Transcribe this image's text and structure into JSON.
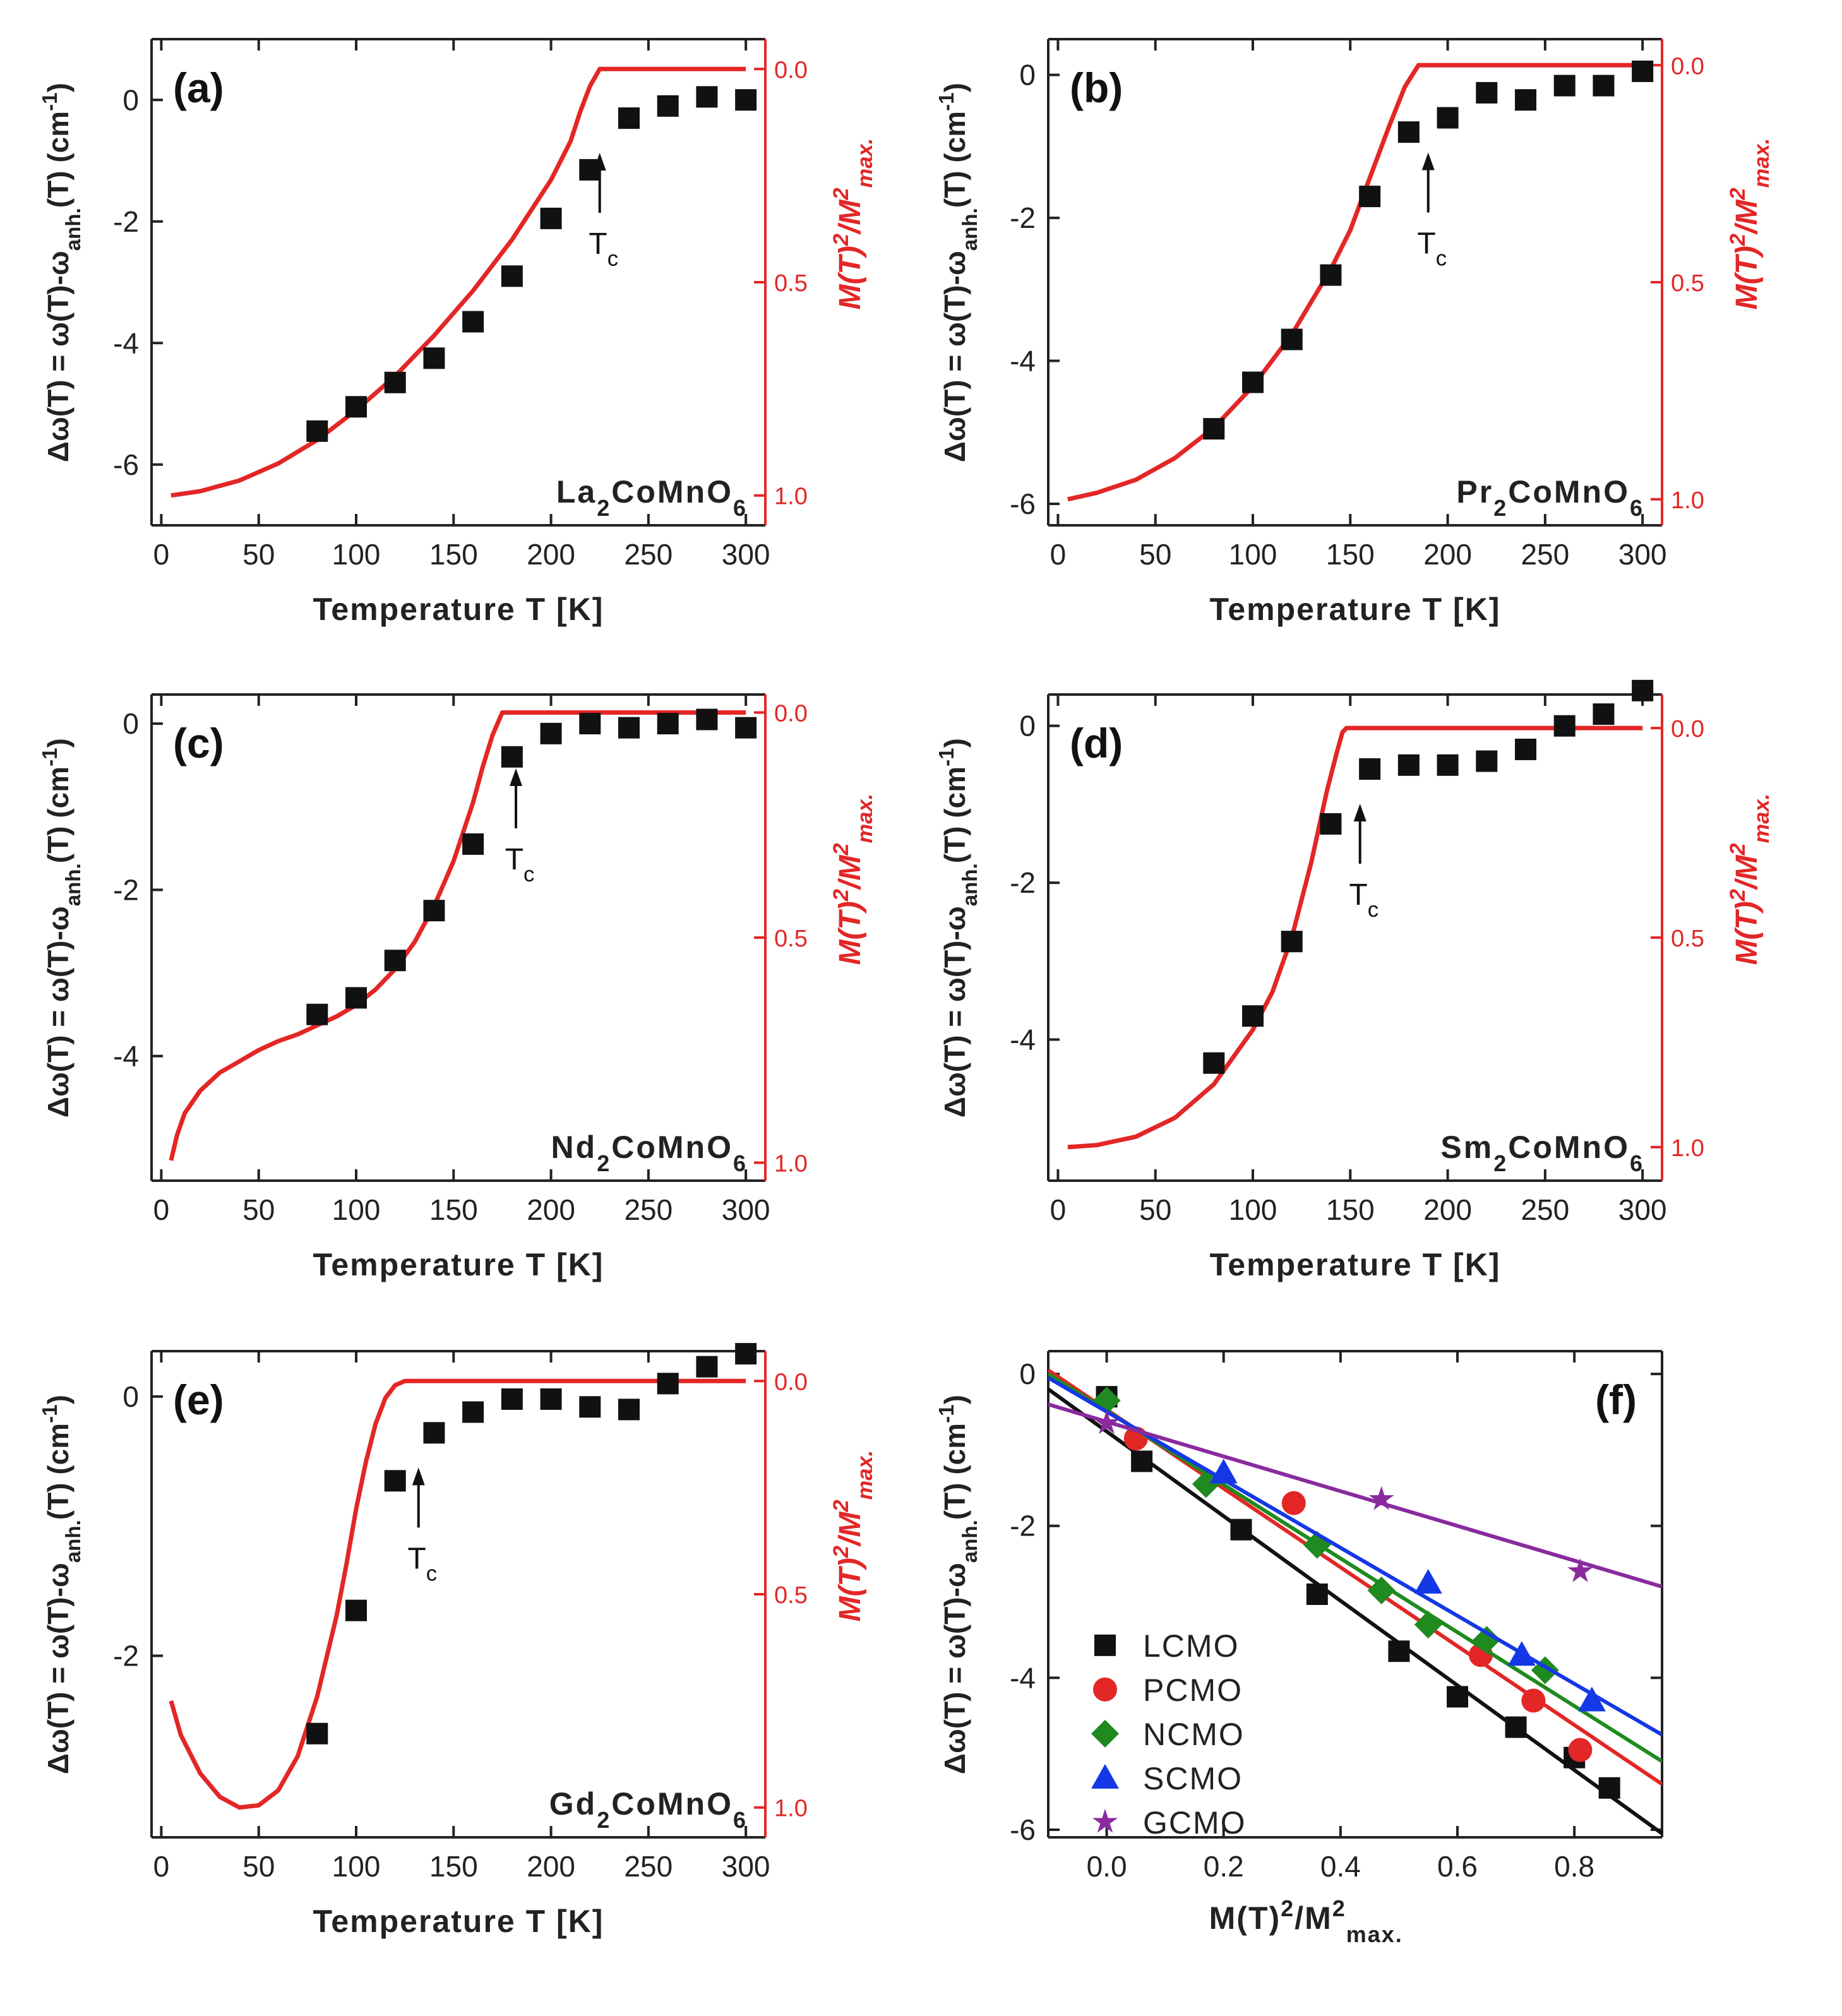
{
  "colors": {
    "fit_red": "#e32626",
    "axis_black": "#222222",
    "points_black": "#111111"
  },
  "y_label_left": "Δω(T) = ω(T)-ωanh.(T) (cm⁻¹)",
  "y_label_right": "M(T)²/M²max.",
  "x_label": "Temperature T [K]",
  "chart_data": [
    {
      "id": "a",
      "panel": "(a)",
      "type": "scatter+line",
      "compound": "La2CoMnO6",
      "xlabel": "Temperature T [K]",
      "xlim": [
        -5,
        310
      ],
      "ylim": [
        -7.0,
        1.0
      ],
      "rlim": [
        -0.07,
        1.07
      ],
      "xticks": [
        0,
        50,
        100,
        150,
        200,
        250,
        300
      ],
      "yticks": [
        0,
        -2,
        -4,
        -6
      ],
      "rticks": [
        0.0,
        0.5,
        1.0
      ],
      "tc": 225,
      "tc_label": "Tc",
      "points": {
        "x": [
          80,
          100,
          120,
          140,
          160,
          180,
          200,
          220,
          240,
          260,
          280,
          300
        ],
        "y": [
          -5.45,
          -5.05,
          -4.65,
          -4.25,
          -3.65,
          -2.9,
          -1.95,
          -1.15,
          -0.3,
          -0.1,
          0.05,
          0.0
        ]
      },
      "fit": {
        "x": [
          5,
          20,
          40,
          60,
          80,
          100,
          120,
          140,
          160,
          180,
          200,
          210,
          215,
          220,
          225,
          300
        ],
        "m2": [
          1.0,
          0.99,
          0.965,
          0.925,
          0.87,
          0.8,
          0.72,
          0.625,
          0.52,
          0.4,
          0.26,
          0.17,
          0.1,
          0.04,
          0.0,
          0.0
        ]
      }
    },
    {
      "id": "b",
      "panel": "(b)",
      "type": "scatter+line",
      "compound": "Pr2CoMnO6",
      "xlabel": "Temperature T [K]",
      "xlim": [
        -5,
        310
      ],
      "ylim": [
        -6.3,
        0.5
      ],
      "rlim": [
        -0.06,
        1.06
      ],
      "xticks": [
        0,
        50,
        100,
        150,
        200,
        250,
        300
      ],
      "yticks": [
        0,
        -2,
        -4,
        -6
      ],
      "rticks": [
        0.0,
        0.5,
        1.0
      ],
      "tc": 190,
      "tc_label": "Tc",
      "points": {
        "x": [
          80,
          100,
          120,
          140,
          160,
          180,
          200,
          220,
          240,
          260,
          280,
          300
        ],
        "y": [
          -4.95,
          -4.3,
          -3.7,
          -2.8,
          -1.7,
          -0.8,
          -0.6,
          -0.25,
          -0.35,
          -0.15,
          -0.15,
          0.05
        ]
      },
      "fit": {
        "x": [
          5,
          20,
          40,
          60,
          80,
          100,
          120,
          140,
          150,
          160,
          170,
          178,
          185,
          300
        ],
        "m2": [
          1.0,
          0.985,
          0.955,
          0.905,
          0.835,
          0.74,
          0.62,
          0.47,
          0.38,
          0.26,
          0.14,
          0.05,
          0.0,
          0.0
        ]
      }
    },
    {
      "id": "c",
      "panel": "(c)",
      "type": "scatter+line",
      "compound": "Nd2CoMnO6",
      "xlabel": "Temperature T [K]",
      "xlim": [
        -5,
        310
      ],
      "ylim": [
        -5.5,
        0.35
      ],
      "rlim": [
        -0.04,
        1.04
      ],
      "xticks": [
        0,
        50,
        100,
        150,
        200,
        250,
        300
      ],
      "yticks": [
        0,
        -2,
        -4
      ],
      "rticks": [
        0.0,
        0.5,
        1.0
      ],
      "tc": 182,
      "tc_label": "Tc",
      "points": {
        "x": [
          80,
          100,
          120,
          140,
          160,
          180,
          200,
          220,
          240,
          260,
          280,
          300
        ],
        "y": [
          -3.5,
          -3.3,
          -2.85,
          -2.25,
          -1.45,
          -0.4,
          -0.12,
          0.0,
          -0.05,
          0.0,
          0.05,
          -0.05
        ]
      },
      "fit": {
        "x": [
          5,
          8,
          12,
          20,
          30,
          40,
          50,
          60,
          70,
          80,
          90,
          100,
          110,
          120,
          130,
          140,
          150,
          160,
          165,
          170,
          175,
          300
        ],
        "m2": [
          0.995,
          0.94,
          0.89,
          0.84,
          0.8,
          0.775,
          0.75,
          0.73,
          0.715,
          0.695,
          0.675,
          0.65,
          0.615,
          0.57,
          0.51,
          0.43,
          0.33,
          0.2,
          0.12,
          0.05,
          0.0,
          0.0
        ]
      }
    },
    {
      "id": "d",
      "panel": "(d)",
      "type": "scatter+line",
      "compound": "Sm2CoMnO6",
      "xlabel": "Temperature T [K]",
      "xlim": [
        -5,
        310
      ],
      "ylim": [
        -5.8,
        0.4
      ],
      "rlim": [
        -0.08,
        1.08
      ],
      "xticks": [
        0,
        50,
        100,
        150,
        200,
        250,
        300
      ],
      "yticks": [
        0,
        -2,
        -4
      ],
      "rticks": [
        0.0,
        0.5,
        1.0
      ],
      "tc": 155,
      "tc_label": "Tc",
      "points": {
        "x": [
          80,
          100,
          120,
          140,
          160,
          180,
          200,
          220,
          240,
          260,
          280,
          300
        ],
        "y": [
          -4.3,
          -3.7,
          -2.75,
          -1.25,
          -0.55,
          -0.5,
          -0.5,
          -0.45,
          -0.3,
          0.0,
          0.15,
          0.45
        ]
      },
      "fit": {
        "x": [
          5,
          20,
          40,
          60,
          80,
          100,
          110,
          120,
          130,
          138,
          143,
          146,
          148,
          300
        ],
        "m2": [
          1.0,
          0.995,
          0.975,
          0.93,
          0.85,
          0.72,
          0.63,
          0.5,
          0.32,
          0.15,
          0.06,
          0.01,
          0.0,
          0.0
        ]
      }
    },
    {
      "id": "e",
      "panel": "(e)",
      "type": "scatter+line",
      "compound": "Gd2CoMnO6",
      "xlabel": "Temperature T [K]",
      "xlim": [
        -5,
        310
      ],
      "ylim": [
        -3.4,
        0.35
      ],
      "rlim": [
        -0.07,
        1.07
      ],
      "xticks": [
        0,
        50,
        100,
        150,
        200,
        250,
        300
      ],
      "yticks": [
        0,
        -2
      ],
      "rticks": [
        0.0,
        0.5,
        1.0
      ],
      "tc": 132,
      "tc_label": "Tc",
      "points": {
        "x": [
          80,
          100,
          120,
          140,
          160,
          180,
          200,
          220,
          240,
          260,
          280,
          300
        ],
        "y": [
          -2.6,
          -1.65,
          -0.65,
          -0.28,
          -0.12,
          -0.02,
          -0.02,
          -0.08,
          -0.1,
          0.1,
          0.23,
          0.33
        ]
      },
      "fit": {
        "x": [
          5,
          10,
          20,
          30,
          40,
          50,
          60,
          70,
          80,
          90,
          95,
          100,
          105,
          110,
          115,
          120,
          125,
          300
        ],
        "m2": [
          0.75,
          0.83,
          0.92,
          0.975,
          1.0,
          0.995,
          0.96,
          0.88,
          0.74,
          0.55,
          0.43,
          0.3,
          0.19,
          0.1,
          0.04,
          0.01,
          0.0,
          0.0
        ]
      }
    },
    {
      "id": "f",
      "panel": "(f)",
      "type": "scatter+line",
      "xlabel": "M(T)²/M²max.",
      "xlim": [
        -0.1,
        0.95
      ],
      "ylim": [
        -6.1,
        0.3
      ],
      "xticks": [
        0.0,
        0.2,
        0.4,
        0.6,
        0.8
      ],
      "yticks": [
        0,
        -2,
        -4,
        -6
      ],
      "legend_position": "lower-left",
      "series": [
        {
          "name": "LCMO",
          "color": "#111111",
          "marker": "square",
          "x": [
            0.0,
            0.06,
            0.23,
            0.36,
            0.5,
            0.6,
            0.7,
            0.8,
            0.86
          ],
          "y": [
            -0.3,
            -1.15,
            -2.05,
            -2.9,
            -3.65,
            -4.25,
            -4.65,
            -5.05,
            -5.45
          ],
          "fit": [
            -0.1,
            0.95,
            -0.2,
            -6.05
          ]
        },
        {
          "name": "PCMO",
          "color": "#e32626",
          "marker": "circle",
          "x": [
            0.05,
            0.32,
            0.64,
            0.73,
            0.81
          ],
          "y": [
            -0.85,
            -1.7,
            -3.7,
            -4.3,
            -4.95
          ],
          "fit": [
            -0.1,
            0.95,
            0.05,
            -5.4
          ]
        },
        {
          "name": "NCMO",
          "color": "#1f8a1f",
          "marker": "diamond",
          "x": [
            0.0,
            0.17,
            0.36,
            0.47,
            0.55,
            0.65,
            0.75
          ],
          "y": [
            -0.35,
            -1.45,
            -2.25,
            -2.85,
            -3.3,
            -3.5,
            -3.9
          ],
          "fit": [
            -0.1,
            0.95,
            0.0,
            -5.1
          ]
        },
        {
          "name": "SCMO",
          "color": "#1438e6",
          "marker": "triangle",
          "x": [
            0.2,
            0.55,
            0.71,
            0.83
          ],
          "y": [
            -1.3,
            -2.75,
            -3.7,
            -4.3
          ],
          "fit": [
            -0.1,
            0.95,
            -0.05,
            -4.75
          ]
        },
        {
          "name": "GCMO",
          "color": "#8a2a9e",
          "marker": "star",
          "x": [
            0.0,
            0.47,
            0.81
          ],
          "y": [
            -0.65,
            -1.65,
            -2.6
          ],
          "fit": [
            -0.1,
            0.95,
            -0.4,
            -2.8
          ]
        }
      ]
    }
  ]
}
